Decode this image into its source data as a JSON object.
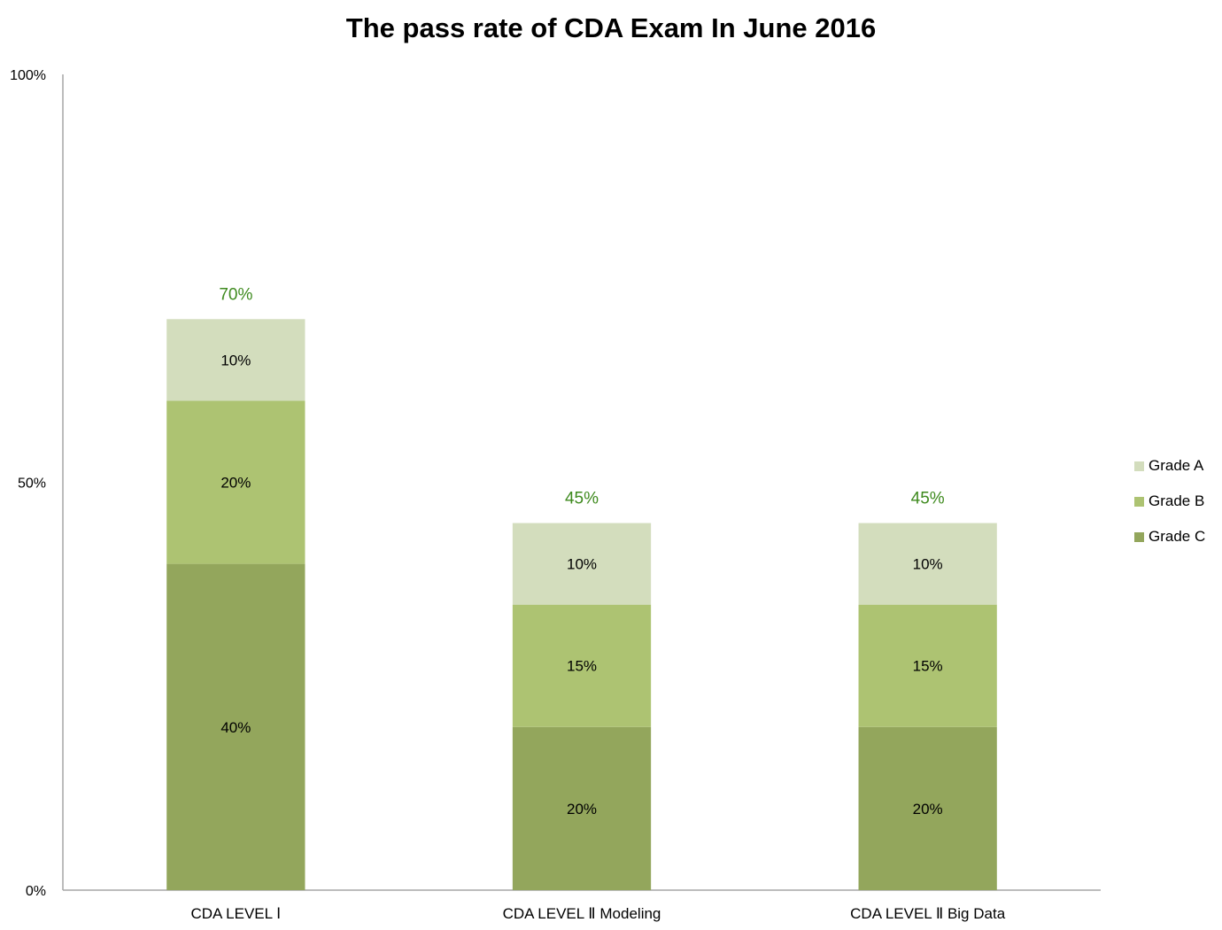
{
  "chart_data": {
    "type": "bar",
    "stacked": true,
    "title": "The pass rate of CDA Exam In June 2016",
    "categories": [
      "CDA LEVEL  Ⅰ",
      "CDA LEVEL  Ⅱ Modeling",
      "CDA LEVEL  Ⅱ Big Data"
    ],
    "series": [
      {
        "name": "Grade C",
        "values": [
          40,
          20,
          20
        ],
        "labels": [
          "40%",
          "20%",
          "20%"
        ],
        "color": "#93a65c"
      },
      {
        "name": "Grade B",
        "values": [
          20,
          15,
          15
        ],
        "labels": [
          "20%",
          "15%",
          "15%"
        ],
        "color": "#adc372"
      },
      {
        "name": "Grade A",
        "values": [
          10,
          10,
          10
        ],
        "labels": [
          "10%",
          "10%",
          "10%"
        ],
        "color": "#d3ddbd"
      }
    ],
    "totals": [
      "70%",
      "45%",
      "45%"
    ],
    "total_label_color": "#3e8a1e",
    "yticks": [
      {
        "value": 0,
        "label": "0%"
      },
      {
        "value": 50,
        "label": "50%"
      },
      {
        "value": 100,
        "label": "100%"
      }
    ],
    "ylim": [
      0,
      100
    ],
    "grid": false,
    "legend_position": "right",
    "legend": [
      {
        "name": "Grade A",
        "color": "#d3ddbd"
      },
      {
        "name": "Grade B",
        "color": "#adc372"
      },
      {
        "name": "Grade C",
        "color": "#93a65c"
      }
    ]
  }
}
